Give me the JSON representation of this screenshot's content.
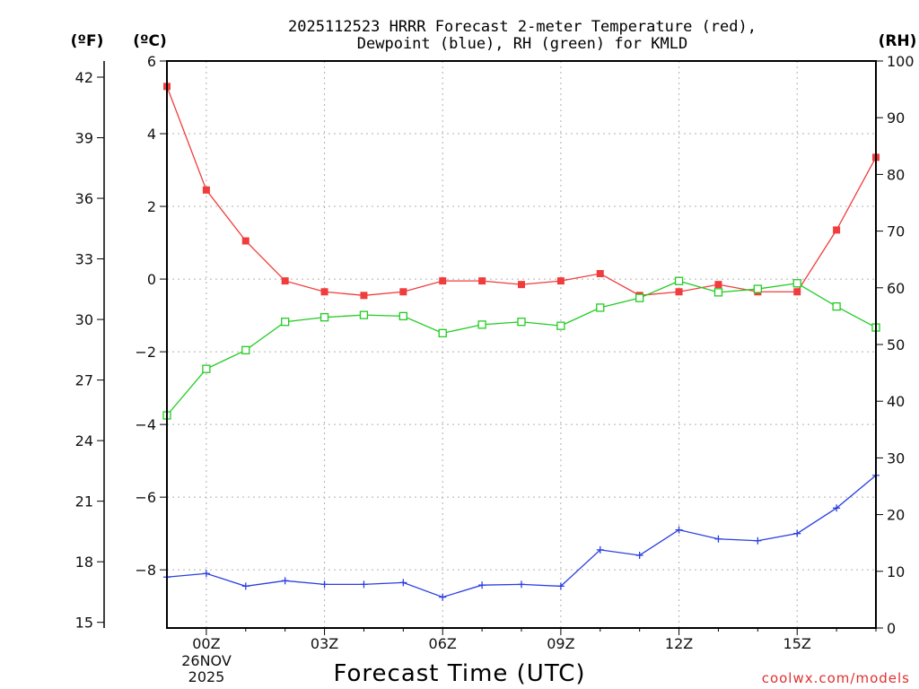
{
  "chart_data": {
    "type": "line",
    "title_line1": "2025112523 HRRR Forecast 2-meter Temperature (red),",
    "title_line2": "Dewpoint (blue), RH (green) for KMLD",
    "xlabel": "Forecast Time (UTC)",
    "credit": "coolwx.com/models",
    "units": {
      "fahrenheit": "(ºF)",
      "celsius": "(ºC)",
      "rh": "(RH)"
    },
    "x_hours": [
      -1,
      0,
      1,
      2,
      3,
      4,
      5,
      6,
      7,
      8,
      9,
      10,
      11,
      12,
      13,
      14,
      15,
      16,
      17
    ],
    "x_tick_hours": [
      0,
      3,
      6,
      9,
      12,
      15
    ],
    "x_tick_labels": [
      "00Z",
      "03Z",
      "06Z",
      "09Z",
      "12Z",
      "15Z"
    ],
    "date_line1": "26NOV",
    "date_line2": "2025",
    "xlim": [
      -1,
      17
    ],
    "celsius_axis": {
      "ylim": [
        -9.6,
        6.0
      ],
      "ticks": [
        "6",
        "4",
        "2",
        "0",
        "−2",
        "−4",
        "−6",
        "−8"
      ],
      "tick_values": [
        6,
        4,
        2,
        0,
        -2,
        -4,
        -6,
        -8
      ]
    },
    "fahrenheit_axis": {
      "ticks": [
        "42",
        "39",
        "36",
        "33",
        "30",
        "27",
        "24",
        "21",
        "18",
        "15"
      ],
      "tick_values": [
        42,
        39,
        36,
        33,
        30,
        27,
        24,
        21,
        18,
        15
      ]
    },
    "rh_axis": {
      "ylim": [
        0,
        100
      ],
      "ticks": [
        "100",
        "90",
        "80",
        "70",
        "60",
        "50",
        "40",
        "30",
        "20",
        "10",
        "0"
      ],
      "tick_values": [
        100,
        90,
        80,
        70,
        60,
        50,
        40,
        30,
        20,
        10,
        0
      ]
    },
    "series": [
      {
        "name": "Temperature",
        "axis": "celsius",
        "color": "#f03c3c",
        "marker": "filled-square",
        "values": [
          5.3,
          2.45,
          1.05,
          -0.05,
          -0.35,
          -0.45,
          -0.35,
          -0.05,
          -0.05,
          -0.15,
          -0.05,
          0.15,
          -0.45,
          -0.35,
          -0.15,
          -0.35,
          -0.35,
          1.35,
          3.35
        ]
      },
      {
        "name": "Dewpoint",
        "axis": "celsius",
        "color": "#2a3ee0",
        "marker": "plus",
        "values": [
          -8.2,
          -8.1,
          -8.45,
          -8.3,
          -8.4,
          -8.4,
          -8.35,
          -8.75,
          -8.42,
          -8.4,
          -8.45,
          -7.45,
          -7.6,
          -6.9,
          -7.15,
          -7.2,
          -7.0,
          -6.3,
          -5.4
        ]
      },
      {
        "name": "RH",
        "axis": "rh",
        "color": "#22cc22",
        "marker": "open-square",
        "values": [
          37.5,
          45.7,
          49.0,
          54.0,
          54.8,
          55.2,
          55.0,
          52.0,
          53.5,
          54.0,
          53.3,
          56.5,
          58.2,
          61.2,
          59.2,
          59.8,
          60.8,
          56.7,
          53.0
        ]
      }
    ]
  }
}
